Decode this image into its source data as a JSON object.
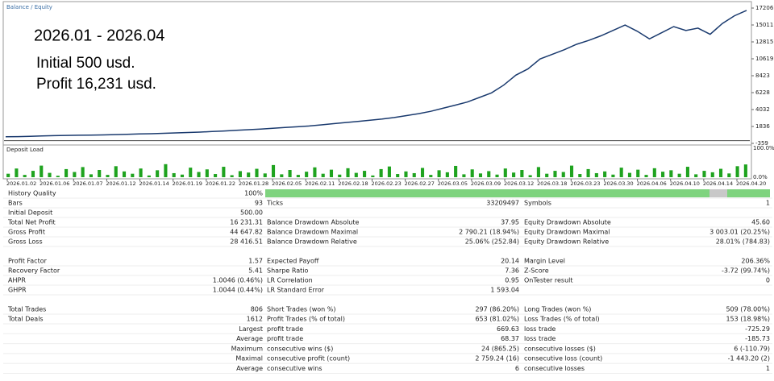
{
  "chart_data": [
    {
      "type": "line",
      "legend": "Balance / Equity",
      "color": "#1a3a6e",
      "annotations": [
        "2026.01 - 2026.04",
        "Initial 500 usd.",
        "Profit 16,231 usd."
      ],
      "values": [
        500,
        520,
        560,
        600,
        640,
        680,
        700,
        720,
        740,
        780,
        820,
        860,
        900,
        950,
        1000,
        1050,
        1100,
        1180,
        1250,
        1330,
        1420,
        1500,
        1600,
        1700,
        1800,
        1900,
        2050,
        2200,
        2350,
        2500,
        2650,
        2800,
        3000,
        3250,
        3500,
        3800,
        4200,
        4600,
        5000,
        5600,
        6200,
        7200,
        8500,
        9300,
        10600,
        11200,
        11800,
        12500,
        13000,
        13600,
        14300,
        15000,
        14200,
        13200,
        14000,
        14800,
        14300,
        14600,
        13800,
        15200,
        16200,
        16900
      ],
      "ylim": [
        -359,
        17206
      ],
      "yticks": [
        17206,
        15011,
        12815,
        10619,
        8423,
        6228,
        4032,
        1836,
        -359
      ],
      "xticks": [
        "2026.01.02",
        "2026.01.06",
        "2026.01.07",
        "2026.01.12",
        "2026.01.14",
        "2026.01.19",
        "2026.01.22",
        "2026.01.28",
        "2026.02.05",
        "2026.02.11",
        "2026.02.18",
        "2026.02.23",
        "2026.02.27",
        "2026.03.05",
        "2026.03.09",
        "2026.03.12",
        "2026.03.18",
        "2026.03.23",
        "2026.03.30",
        "2026.04.06",
        "2026.04.10",
        "2026.04.14",
        "2026.04.20"
      ]
    },
    {
      "type": "bar",
      "title": "Deposit Load",
      "color": "#1fa31f",
      "values": [
        12,
        30,
        8,
        22,
        40,
        15,
        5,
        28,
        18,
        35,
        10,
        25,
        8,
        38,
        20,
        12,
        30,
        6,
        24,
        45,
        14,
        9,
        33,
        18,
        27,
        11,
        36,
        7,
        21,
        16,
        29,
        13,
        42,
        10,
        25,
        8,
        19,
        34,
        12,
        26,
        9,
        31,
        15,
        22,
        6,
        28,
        37,
        11,
        20,
        14,
        32,
        8,
        24,
        17,
        39,
        10,
        27,
        13,
        21,
        9,
        30,
        16,
        25,
        7,
        35,
        12,
        22,
        18,
        40,
        11,
        28,
        14,
        20,
        9,
        33,
        15,
        26,
        8,
        31,
        19,
        24,
        12,
        36,
        10,
        22,
        17,
        29,
        13,
        38,
        44
      ],
      "ylim": [
        0,
        100
      ],
      "yticks": [
        {
          "value": 100,
          "label": "100.0%"
        },
        {
          "value": 0,
          "label": "0.0%"
        }
      ]
    }
  ],
  "table": {
    "rows": [
      [
        "History Quality",
        "100%",
        null,
        null,
        null,
        null
      ],
      [
        "Bars",
        "93",
        "Ticks",
        "33209497",
        "Symbols",
        "1"
      ],
      [
        "Initial Deposit",
        "500.00",
        null,
        null,
        null,
        null
      ],
      [
        "Total Net Profit",
        "16 231.31",
        "Balance Drawdown Absolute",
        "37.95",
        "Equity Drawdown Absolute",
        "45.60"
      ],
      [
        "Gross Profit",
        "44 647.82",
        "Balance Drawdown Maximal",
        "2 790.21 (18.94%)",
        "Equity Drawdown Maximal",
        "3 003.01 (20.25%)"
      ],
      [
        "Gross Loss",
        "28 416.51",
        "Balance Drawdown Relative",
        "25.06% (252.84)",
        "Equity Drawdown Relative",
        "28.01% (784.83)"
      ],
      null,
      [
        "Profit Factor",
        "1.57",
        "Expected Payoff",
        "20.14",
        "Margin Level",
        "206.36%"
      ],
      [
        "Recovery Factor",
        "5.41",
        "Sharpe Ratio",
        "7.36",
        "Z-Score",
        "-3.72 (99.74%)"
      ],
      [
        "AHPR",
        "1.0046 (0.46%)",
        "LR Correlation",
        "0.95",
        "OnTester result",
        "0"
      ],
      [
        "GHPR",
        "1.0044 (0.44%)",
        "LR Standard Error",
        "1 593.04",
        null,
        null
      ],
      null,
      [
        "Total Trades",
        "806",
        "Short Trades (won %)",
        "297 (86.20%)",
        "Long Trades (won %)",
        "509 (78.00%)"
      ],
      [
        "Total Deals",
        "1612",
        "Profit Trades (% of total)",
        "653 (81.02%)",
        "Loss Trades (% of total)",
        "153 (18.98%)"
      ],
      [
        null,
        "Largest",
        "profit trade",
        "669.63",
        "loss trade",
        "-725.29"
      ],
      [
        null,
        "Average",
        "profit trade",
        "68.37",
        "loss trade",
        "-185.73"
      ],
      [
        null,
        "Maximum",
        "consecutive wins ($)",
        "24 (865.25)",
        "consecutive losses ($)",
        "6 (-110.79)"
      ],
      [
        null,
        "Maximal",
        "consecutive profit (count)",
        "2 759.24 (16)",
        "consecutive loss (count)",
        "-1 443.20 (2)"
      ],
      [
        null,
        "Average",
        "consecutive wins",
        "6",
        "consecutive losses",
        "1"
      ]
    ]
  }
}
